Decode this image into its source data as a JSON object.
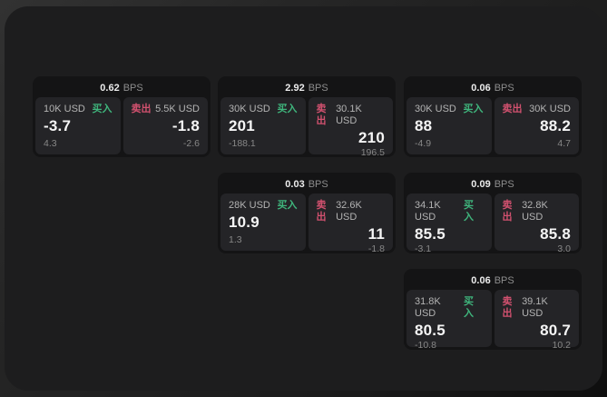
{
  "colors": {
    "buy_green": "#3fb57c",
    "sell_red": "#d2516f",
    "panel_bg": "#1d1d1e",
    "group_bg": "#141415",
    "tile_bg": "#242427"
  },
  "groups": [
    {
      "bps_value": "0.62",
      "bps_unit": "BPS",
      "buy": {
        "amount": "10K USD",
        "side_label": "买入",
        "price": "-3.7",
        "delta": "4.3"
      },
      "sell": {
        "side_label": "卖出",
        "amount": "5.5K USD",
        "price": "-1.8",
        "delta": "-2.6"
      }
    },
    {
      "bps_value": "2.92",
      "bps_unit": "BPS",
      "buy": {
        "amount": "30K USD",
        "side_label": "买入",
        "price": "201",
        "delta": "-188.1"
      },
      "sell": {
        "side_label": "卖出",
        "amount": "30.1K USD",
        "price": "210",
        "delta": "196.5"
      }
    },
    {
      "bps_value": "0.06",
      "bps_unit": "BPS",
      "buy": {
        "amount": "30K USD",
        "side_label": "买入",
        "price": "88",
        "delta": "-4.9"
      },
      "sell": {
        "side_label": "卖出",
        "amount": "30K USD",
        "price": "88.2",
        "delta": "4.7"
      }
    },
    {
      "bps_value": "0.03",
      "bps_unit": "BPS",
      "buy": {
        "amount": "28K USD",
        "side_label": "买入",
        "price": "10.9",
        "delta": "1.3"
      },
      "sell": {
        "side_label": "卖出",
        "amount": "32.6K USD",
        "price": "11",
        "delta": "-1.8"
      }
    },
    {
      "bps_value": "0.09",
      "bps_unit": "BPS",
      "buy": {
        "amount": "34.1K USD",
        "side_label": "买入",
        "price": "85.5",
        "delta": "-3.1"
      },
      "sell": {
        "side_label": "卖出",
        "amount": "32.8K USD",
        "price": "85.8",
        "delta": "3.0"
      }
    },
    {
      "bps_value": "0.06",
      "bps_unit": "BPS",
      "buy": {
        "amount": "31.8K USD",
        "side_label": "买入",
        "price": "80.5",
        "delta": "-10.8"
      },
      "sell": {
        "side_label": "卖出",
        "amount": "39.1K USD",
        "price": "80.7",
        "delta": "10.2"
      }
    }
  ]
}
